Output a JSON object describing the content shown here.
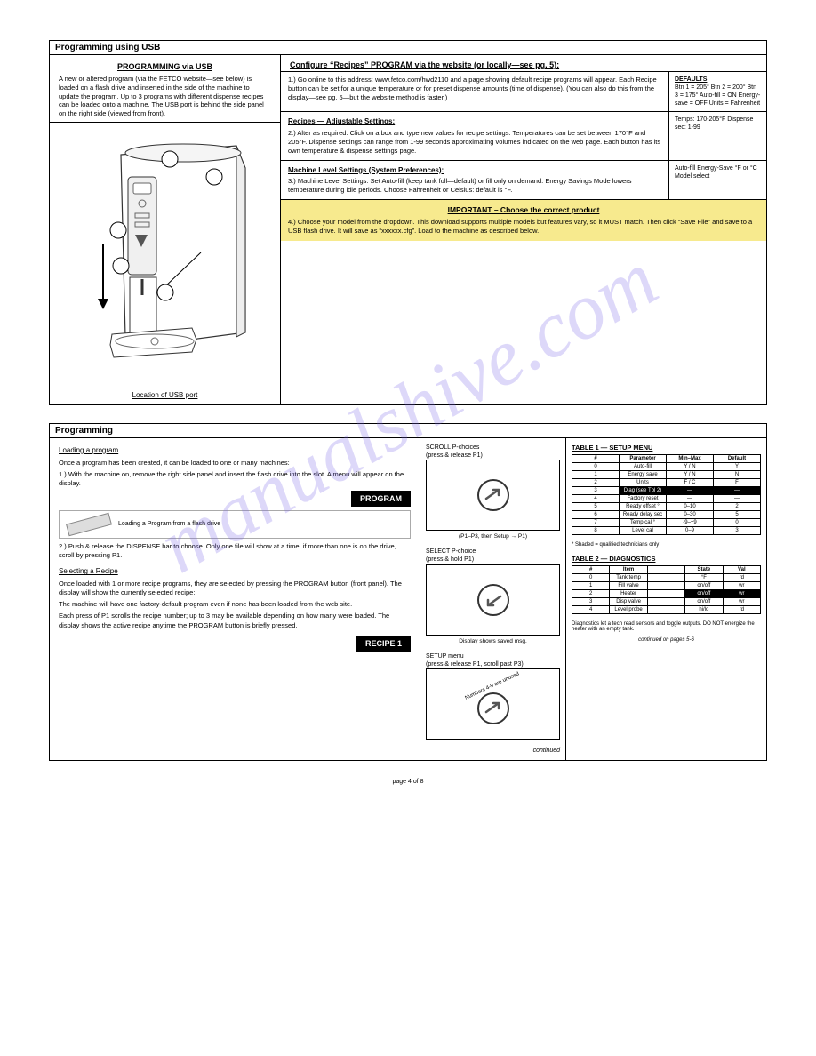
{
  "watermark": "manualshive.com",
  "top_panel": {
    "header": "Programming using USB",
    "left_upper_title": "PROGRAMMING via USB",
    "left_upper_text": "A new or altered program (via the FETCO website—see below) is loaded on a flash drive and inserted in the side of the machine to update the program. Up to 3 programs with different dispense recipes can be loaded onto a machine. The USB port is behind the side panel on the right side (viewed from front).",
    "left_lower_caption": "Location of USB port",
    "callouts": {
      "1": "1",
      "2": "2",
      "3": "3",
      "4": "4",
      "5": "5"
    },
    "right": {
      "title": "Configure “Recipes” PROGRAM via the website (or locally—see pg. 5):",
      "step1_left": "1.) Go online to this address: www.fetco.com/hwd2110 and a page showing default recipe programs will appear. Each Recipe button can be set for a unique temperature or for preset dispense amounts (time of dispense). (You can also do this from the display—see pg. 5—but the website method is faster.)",
      "step1_right_title": "DEFAULTS",
      "step1_right_text": "Btn 1 = 205° Btn 2 = 200° Btn 3 = 175° Auto-fill = ON Energy-save = OFF Units = Fahrenheit",
      "sub2": "Recipes — Adjustable Settings:",
      "step2_left": "2.) Alter as required: Click on a box and type new values for recipe settings. Temperatures can be set between 170°F and 205°F. Dispense settings can range from 1-99 seconds approximating volumes indicated on the web page. Each button has its own temperature & dispense settings page.",
      "step2_right": "Temps: 170-205°F Dispense sec: 1-99",
      "sub3": "Machine Level Settings (System Preferences):",
      "step3_left": "3.) Machine Level Settings: Set Auto-fill (keep tank full—default) or fill only on demand. Energy Savings Mode lowers temperature during idle periods. Choose Fahrenheit or Celsius: default is °F.",
      "step3_right": "Auto-fill Energy-Save °F or °C Model select",
      "hl_title": "IMPORTANT – Choose the correct product",
      "hl_text": "4.) Choose your model from the dropdown. This download supports multiple models but features vary, so it MUST match. Then click “Save File” and save to a USB flash drive. It will save as “xxxxxx.cfg”. Load to the machine as described below."
    }
  },
  "bot_panel": {
    "header": "Programming",
    "left": {
      "loading_title": "Loading a program",
      "p1": "Once a program has been created, it can be loaded to one or many machines:",
      "step1": "1.) With the machine on, remove the right side panel and insert the flash drive into the slot. A menu will appear on the display.",
      "btn_program": "PROGRAM",
      "usb_caption": "Loading a Program from a flash drive",
      "step2": "2.) Push & release the DISPENSE bar to choose. Only one file will show at a time; if more than one is on the drive, scroll by pressing P1.",
      "selecting_title": "Selecting a Recipe",
      "p2a": "Once loaded with 1 or more recipe programs, they are selected by pressing the PROGRAM button (front panel). The display will show the currently selected recipe:",
      "p2b": "The machine will have one factory-default program even if none has been loaded from the web site.",
      "p2c": "Each press of P1 scrolls the recipe number; up to 3 may be available depending on how many were loaded. The display shows the active recipe anytime the PROGRAM button is briefly pressed.",
      "btn_recipe": "RECIPE 1"
    },
    "mid": {
      "t1a": "SCROLL P-choices",
      "t1b": "(press & release P1)",
      "img1_cap": "(P1–P3, then Setup → P1)",
      "t2a": "SELECT P-choice",
      "t2b": "(press & hold P1)",
      "img2_cap": "Display shows saved msg.",
      "t3a": "SETUP menu",
      "t3b": "(press & release P1, scroll past P3)",
      "img3_cap": "Numbers 4-9 are unused",
      "note": "continued"
    },
    "right": {
      "t1_title": "TABLE 1 — SETUP MENU",
      "t1": {
        "head": [
          "#",
          "Parameter",
          "Min–Max",
          "Default"
        ],
        "rows": [
          [
            "0",
            "Auto-fill",
            "Y / N",
            "Y"
          ],
          [
            "1",
            "Energy save",
            "Y / N",
            "N"
          ],
          [
            "2",
            "Units",
            "F / C",
            "F"
          ],
          [
            "3",
            "Diag (see Tbl 2)",
            "—",
            "—"
          ],
          [
            "4",
            "Factory reset",
            "—",
            "—"
          ],
          [
            "5",
            "Ready offset °",
            "0–10",
            "2"
          ],
          [
            "6",
            "Ready delay sec",
            "0–30",
            "5"
          ],
          [
            "7",
            "Temp cal °",
            "-9–+9",
            "0"
          ],
          [
            "8",
            "Level cal",
            "0–9",
            "3"
          ]
        ],
        "hl_row": 3
      },
      "t1_note": "* Shaded = qualified technicians only",
      "t2_title": "TABLE 2 — DIAGNOSTICS",
      "t2": {
        "head": [
          "#",
          "Item",
          "",
          "State",
          "Val"
        ],
        "rows": [
          [
            "0",
            "Tank temp",
            "",
            "°F",
            "rd"
          ],
          [
            "1",
            "Fill valve",
            "",
            "on/off",
            "wr"
          ],
          [
            "2",
            "Heater",
            "",
            "on/off",
            "wr"
          ],
          [
            "3",
            "Disp valve",
            "",
            "on/off",
            "wr"
          ],
          [
            "4",
            "Level probe",
            "",
            "hi/lo",
            "rd"
          ]
        ],
        "hl_cells": [
          [
            2,
            3
          ],
          [
            2,
            4
          ]
        ]
      },
      "t2_note": "Diagnostics let a tech read sensors and toggle outputs. DO NOT energize the heater with an empty tank.",
      "foot": "continued on pages 5-6"
    }
  },
  "footer": "page 4 of 8"
}
